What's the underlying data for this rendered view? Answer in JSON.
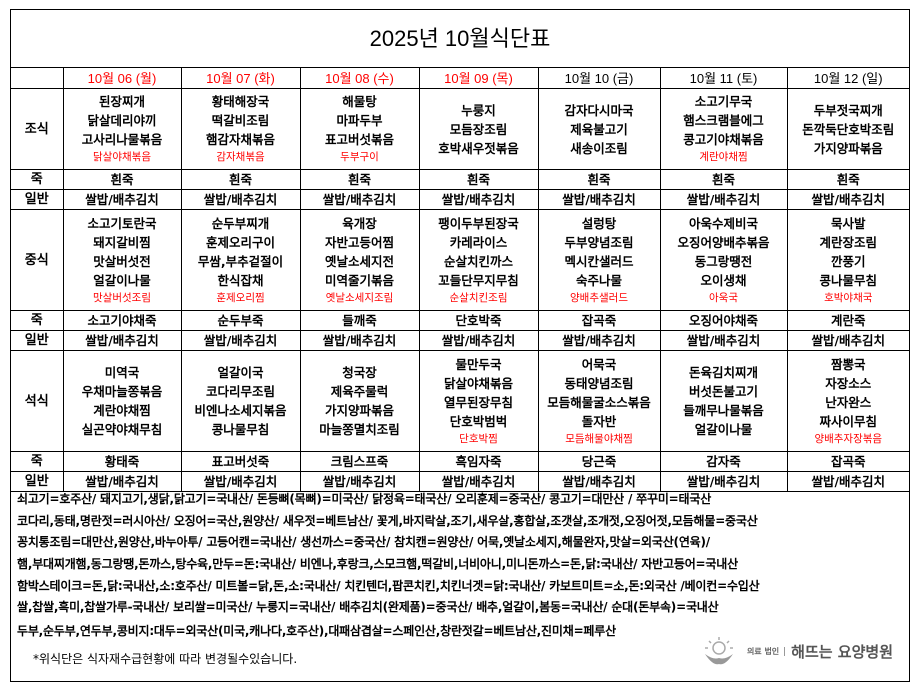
{
  "title": "2025년 10월식단표",
  "colors": {
    "weekday_header": "#ff0000",
    "substitute": "#ff0000"
  },
  "days": [
    {
      "label": "10월 06 (월)",
      "red": true
    },
    {
      "label": "10월 07 (화)",
      "red": true
    },
    {
      "label": "10월 08 (수)",
      "red": true
    },
    {
      "label": "10월 09 (목)",
      "red": true
    },
    {
      "label": "10월 10 (금)",
      "red": false
    },
    {
      "label": "10월 11 (토)",
      "red": false
    },
    {
      "label": "10월 12 (일)",
      "red": false
    }
  ],
  "meals": [
    {
      "label": "조식",
      "items": [
        {
          "dishes": [
            "된장찌개",
            "닭살데리야끼",
            "고사리나물볶음"
          ],
          "sub": "닭살야채볶음"
        },
        {
          "dishes": [
            "황태해장국",
            "떡갈비조림",
            "햄감자채볶음"
          ],
          "sub": "감자채볶음"
        },
        {
          "dishes": [
            "해물탕",
            "마파두부",
            "표고버섯볶음"
          ],
          "sub": "두부구이"
        },
        {
          "dishes": [
            "누룽지",
            "모듬장조림",
            "호박새우젓볶음"
          ],
          "sub": ""
        },
        {
          "dishes": [
            "감자다시마국",
            "제육불고기",
            "새송이조림"
          ],
          "sub": ""
        },
        {
          "dishes": [
            "소고기무국",
            "햄스크램블에그",
            "콩고기야채볶음"
          ],
          "sub": "계란야채찜"
        },
        {
          "dishes": [
            "두부젓국찌개",
            "돈깍둑단호박조림",
            "가지양파볶음"
          ],
          "sub": ""
        }
      ],
      "porridge_label": "죽",
      "porridge": [
        "흰죽",
        "흰죽",
        "흰죽",
        "흰죽",
        "흰죽",
        "흰죽",
        "흰죽"
      ],
      "regular_label": "일반",
      "regular": [
        "쌀밥/배추김치",
        "쌀밥/배추김치",
        "쌀밥/배추김치",
        "쌀밥/배추김치",
        "쌀밥/배추김치",
        "쌀밥/배추김치",
        "쌀밥/배추김치"
      ]
    },
    {
      "label": "중식",
      "items": [
        {
          "dishes": [
            "소고기토란국",
            "돼지갈비찜",
            "맛살버섯전",
            "얼갈이나물"
          ],
          "sub": "맛살버섯조림"
        },
        {
          "dishes": [
            "순두부찌개",
            "훈제오리구이",
            "무쌈,부추겉절이",
            "한식잡채"
          ],
          "sub": "훈제오리찜"
        },
        {
          "dishes": [
            "육개장",
            "자반고등어찜",
            "옛날소세지전",
            "미역줄기볶음"
          ],
          "sub": "옛날소세지조림"
        },
        {
          "dishes": [
            "팽이두부된장국",
            "카레라이스",
            "순살치킨까스",
            "꼬들단무지무침"
          ],
          "sub": "순살치킨조림"
        },
        {
          "dishes": [
            "설렁탕",
            "두부양념조림",
            "멕시칸샐러드",
            "숙주나물"
          ],
          "sub": "양배추샐러드"
        },
        {
          "dishes": [
            "아욱수제비국",
            "오징어양배추볶음",
            "동그랑땡전",
            "오이생채"
          ],
          "sub": "아욱국"
        },
        {
          "dishes": [
            "묵사발",
            "계란장조림",
            "깐풍기",
            "콩나물무침"
          ],
          "sub": "호박야채국"
        }
      ],
      "porridge_label": "죽",
      "porridge": [
        "소고기야채죽",
        "순두부죽",
        "들깨죽",
        "단호박죽",
        "잡곡죽",
        "오징어야채죽",
        "계란죽"
      ],
      "regular_label": "일반",
      "regular": [
        "쌀밥/배추김치",
        "쌀밥/배추김치",
        "쌀밥/배추김치",
        "쌀밥/배추김치",
        "쌀밥/배추김치",
        "쌀밥/배추김치",
        "쌀밥/배추김치"
      ]
    },
    {
      "label": "석식",
      "items": [
        {
          "dishes": [
            "미역국",
            "우채마늘쫑볶음",
            "계란야채찜",
            "실곤약야채무침"
          ],
          "sub": ""
        },
        {
          "dishes": [
            "얼갈이국",
            "코다리무조림",
            "비엔나소세지볶음",
            "콩나물무침"
          ],
          "sub": ""
        },
        {
          "dishes": [
            "청국장",
            "제육주물럭",
            "가지양파볶음",
            "마늘쫑멸치조림"
          ],
          "sub": ""
        },
        {
          "dishes": [
            "물만두국",
            "닭살야채볶음",
            "열무된장무침",
            "단호박범벅"
          ],
          "sub": "단호박찜"
        },
        {
          "dishes": [
            "어묵국",
            "동태양념조림",
            "모듬해물굴소스볶음",
            "돌자반"
          ],
          "sub": "모듬해물야채찜"
        },
        {
          "dishes": [
            "돈육김치찌개",
            "버섯돈불고기",
            "들깨무나물볶음",
            "얼갈이나물"
          ],
          "sub": ""
        },
        {
          "dishes": [
            "짬뽕국",
            "자장소스",
            "난자완스",
            "짜사이무침"
          ],
          "sub": "양배추자장볶음"
        }
      ],
      "porridge_label": "죽",
      "porridge": [
        "황태죽",
        "표고버섯죽",
        "크림스프죽",
        "흑임자죽",
        "당근죽",
        "감자죽",
        "잡곡죽"
      ],
      "regular_label": "일반",
      "regular": [
        "쌀밥/배추김치",
        "쌀밥/배추김치",
        "쌀밥/배추김치",
        "쌀밥/배추김치",
        "쌀밥/배추김치",
        "쌀밥/배추김치",
        "쌀밥/배추김치"
      ]
    }
  ],
  "origin_lines": [
    " 쇠고기=호주산/  돼지고기,생닭,닭고기=국내산/  돈등뼈(목뼈)=미국산/  닭정육=태국산/  오리훈제=중국산/  콩고기=대만산  /  쭈꾸미=태국산",
    "코다리,동태,명란젓=러시아산/  오징어=국산,원양산/  새우젓=베트남산/  꽃게,바지락살,조기,새우살,홍합살,조갯살,조개젓,오징어젓,모듬해물=중국산",
    "꽁치통조림=대만산,원양산,바누아투/  고등어캔=국내산/  생선까스=중국산/  참치캔=원양산/  어묵,옛날소세지,해물완자,맛살=외국산(연육)/",
    "햄,부대찌개햄,동그랑땡,돈까스,탕수육,만두=돈:국내산/  비엔나,후랑크,스모크햄,떡갈비,너비아니,미니돈까스=돈,닭:국내산/  자반고등어=국내산",
    "함박스테이크=돈,닭:국내산,소:호주산/  미트볼=닭,돈,소:국내산/  치킨텐더,팝콘치킨,치킨너겟=닭:국내산/  카보트미트=소,돈:외국산  /베이컨=수입산",
    "쌀,찹쌀,흑미,찹쌀가루-국내산/  보리쌀=미국산/  누룽지=국내산/  배추김치(완제품)=중국산/  배추,얼갈이,봄동=국내산/  순대(돈부속)=국내산",
    "두부,순두부,연두부,콩비지:대두=외국산(미국,캐나다,호주산),대패삼겹살=스페인산,창란젓갈=베트남산,진미채=페루산"
  ],
  "notice": "*위식단은  식자재수급현황에  따라  변경될수있습니다.",
  "logo": {
    "corp": "의료 법인",
    "name": "해뜨는 요양병원",
    "tagline": "Sun-up Silver Hospital",
    "icon": "sun-hands-logo-icon"
  }
}
